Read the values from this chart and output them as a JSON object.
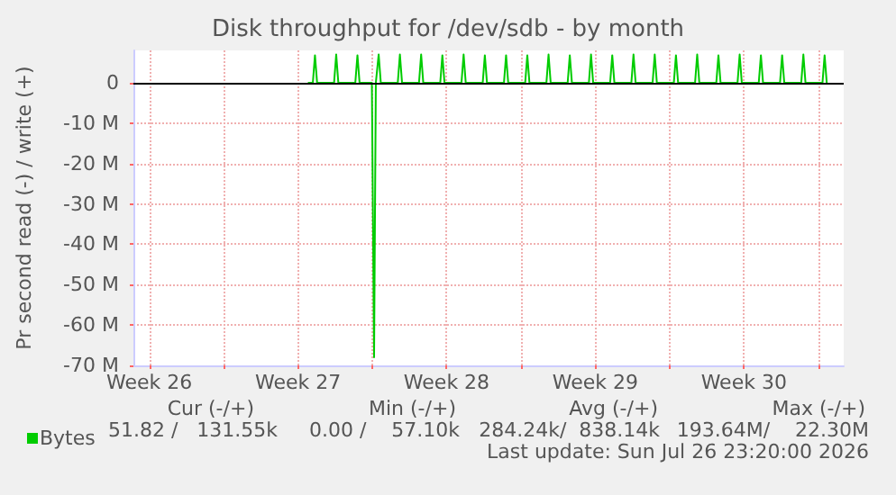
{
  "chart_data": {
    "type": "line",
    "title": "Disk throughput for /dev/sdb - by month",
    "ylabel": "Pr second read (-) / write (+)",
    "xlim": [
      "2026-06-24T18:00",
      "2026-07-28T04:48"
    ],
    "xticks": [
      {
        "value": "2026-06-25T12:00",
        "label": "Week 26"
      },
      {
        "value": "2026-06-29",
        "label": null
      },
      {
        "value": "2026-07-02T12:00",
        "label": "Week 27"
      },
      {
        "value": "2026-07-06",
        "label": null
      },
      {
        "value": "2026-07-09T12:00",
        "label": "Week 28"
      },
      {
        "value": "2026-07-13",
        "label": null
      },
      {
        "value": "2026-07-16T12:00",
        "label": "Week 29"
      },
      {
        "value": "2026-07-20",
        "label": null
      },
      {
        "value": "2026-07-23T12:00",
        "label": "Week 30"
      },
      {
        "value": "2026-07-27",
        "label": null
      }
    ],
    "ylim": [
      -70000000,
      8000000
    ],
    "yticks": [
      {
        "value": -70000000,
        "label": "-70 M"
      },
      {
        "value": -60000000,
        "label": "-60 M"
      },
      {
        "value": -50000000,
        "label": "-50 M"
      },
      {
        "value": -40000000,
        "label": "-40 M"
      },
      {
        "value": -30000000,
        "label": "-30 M"
      },
      {
        "value": -20000000,
        "label": "-20 M"
      },
      {
        "value": -10000000,
        "label": "-10 M"
      },
      {
        "value": 0,
        "label": "0"
      }
    ],
    "grid": true,
    "legend": "bottom left",
    "marker": "none",
    "line_style": "solid",
    "ref_lines": [
      {
        "axis": "y",
        "value": 0,
        "label": null,
        "color": "#000000"
      }
    ],
    "series": [
      {
        "name": "Bytes",
        "color": "#00cc00",
        "x": [
          "2026-07-03T00:00",
          "2026-07-03T04:48",
          "2026-07-03T07:12",
          "2026-07-03T09:36",
          "2026-07-04T04:48",
          "2026-07-04T07:12",
          "2026-07-04T09:36",
          "2026-07-05T04:48",
          "2026-07-05T07:12",
          "2026-07-05T09:36",
          "2026-07-05T23:30",
          "2026-07-06T02:00",
          "2026-07-06T04:00",
          "2026-07-06T05:15",
          "2026-07-06T07:12",
          "2026-07-06T09:36",
          "2026-07-07T04:48",
          "2026-07-07T07:12",
          "2026-07-07T09:36",
          "2026-07-08T04:48",
          "2026-07-08T07:12",
          "2026-07-08T09:36",
          "2026-07-09T04:48",
          "2026-07-09T07:12",
          "2026-07-09T09:36",
          "2026-07-10T04:48",
          "2026-07-10T07:12",
          "2026-07-10T09:36",
          "2026-07-11T04:48",
          "2026-07-11T07:12",
          "2026-07-11T09:36",
          "2026-07-12T04:48",
          "2026-07-12T07:12",
          "2026-07-12T09:36",
          "2026-07-13T04:48",
          "2026-07-13T07:12",
          "2026-07-13T09:36",
          "2026-07-14T04:48",
          "2026-07-14T07:12",
          "2026-07-14T09:36",
          "2026-07-15T04:48",
          "2026-07-15T07:12",
          "2026-07-15T09:36",
          "2026-07-16T04:48",
          "2026-07-16T07:12",
          "2026-07-16T09:36",
          "2026-07-17T04:48",
          "2026-07-17T07:12",
          "2026-07-17T09:36",
          "2026-07-18T04:48",
          "2026-07-18T07:12",
          "2026-07-18T09:36",
          "2026-07-19T04:48",
          "2026-07-19T07:12",
          "2026-07-19T09:36",
          "2026-07-20T04:48",
          "2026-07-20T07:12",
          "2026-07-20T09:36",
          "2026-07-21T04:48",
          "2026-07-21T07:12",
          "2026-07-21T09:36",
          "2026-07-22T04:48",
          "2026-07-22T07:12",
          "2026-07-22T09:36",
          "2026-07-23T04:48",
          "2026-07-23T07:12",
          "2026-07-23T09:36",
          "2026-07-24T04:48",
          "2026-07-24T07:12",
          "2026-07-24T09:36",
          "2026-07-25T04:48",
          "2026-07-25T07:12",
          "2026-07-25T09:36",
          "2026-07-26T04:48",
          "2026-07-26T07:12",
          "2026-07-26T09:36",
          "2026-07-27T04:48",
          "2026-07-27T07:12",
          "2026-07-27T09:36"
        ],
        "values": [
          0,
          0,
          6800000,
          0,
          0,
          7000000,
          0,
          0,
          6800000,
          0,
          0,
          -68000000,
          0,
          0,
          7000000,
          0,
          0,
          7000000,
          0,
          0,
          7000000,
          0,
          0,
          6800000,
          0,
          0,
          7000000,
          0,
          0,
          6800000,
          0,
          0,
          6800000,
          0,
          0,
          6800000,
          0,
          0,
          7000000,
          0,
          0,
          6800000,
          0,
          0,
          7000000,
          0,
          0,
          6800000,
          0,
          0,
          7000000,
          0,
          0,
          7000000,
          0,
          0,
          6800000,
          0,
          0,
          7000000,
          0,
          0,
          6800000,
          0,
          0,
          7000000,
          0,
          0,
          6800000,
          0,
          0,
          6800000,
          0,
          0,
          7000000,
          0,
          0,
          6800000,
          0
        ]
      }
    ],
    "annotations": [
      "Cur (-/+)",
      "Min (-/+)",
      "Avg (-/+)",
      "Max (-/+)",
      "51.82 /   131.55k",
      "0.00 /    57.10k",
      "284.24k/  838.14k",
      "193.64M/    22.30M",
      "Last update: Sun Jul 26 23:20:00 2026"
    ]
  }
}
